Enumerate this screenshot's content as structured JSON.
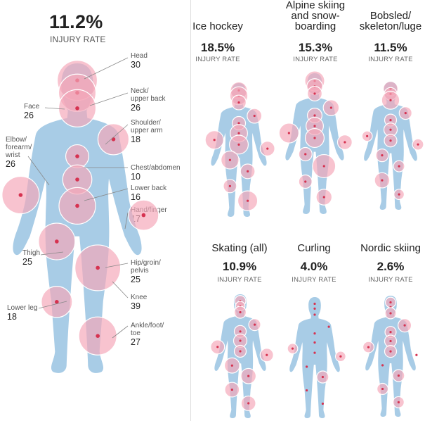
{
  "overall": {
    "rate": "11.2%",
    "caption": "INJURY RATE"
  },
  "regions": [
    {
      "id": "head",
      "label": "Head",
      "value": "30"
    },
    {
      "id": "neck",
      "label": "Neck/\nupper back",
      "value": "26"
    },
    {
      "id": "face",
      "label": "Face",
      "value": "26"
    },
    {
      "id": "shoulder",
      "label": "Shoulder/\nupper arm",
      "value": "18"
    },
    {
      "id": "elbow",
      "label": "Elbow/\nforearm/\nwrist",
      "value": "26"
    },
    {
      "id": "chest",
      "label": "Chest/abdomen",
      "value": "10"
    },
    {
      "id": "lowback",
      "label": "Lower back",
      "value": "16"
    },
    {
      "id": "hand",
      "label": "Hand/finger",
      "value": "17"
    },
    {
      "id": "thigh",
      "label": "Thigh",
      "value": "25"
    },
    {
      "id": "hip",
      "label": "Hip/groin/\npelvis",
      "value": "25"
    },
    {
      "id": "knee",
      "label": "Knee",
      "value": "39"
    },
    {
      "id": "lowerleg",
      "label": "Lower leg",
      "value": "18"
    },
    {
      "id": "ankle",
      "label": "Ankle/foot/\ntoe",
      "value": "27"
    }
  ],
  "sports": [
    {
      "id": "ice-hockey",
      "name": "Ice hockey",
      "rate": "18.5%",
      "caption": "INJURY RATE",
      "injuries": {
        "head": 16,
        "face": 18,
        "neck": 12,
        "shoulder": 12,
        "elbow": 19,
        "chest": 10,
        "lowback": 17,
        "hand": 12,
        "hip": 20,
        "thigh": 18,
        "knee": 12,
        "lowerleg": 10,
        "ankle": 22
      }
    },
    {
      "id": "alpine",
      "name": "Alpine skiing\nand snow-\nboarding",
      "rate": "15.3%",
      "caption": "INJURY RATE",
      "injuries": {
        "head": 22,
        "face": 14,
        "neck": 12,
        "shoulder": 14,
        "elbow": 22,
        "chest": 12,
        "lowback": 17,
        "hand": 12,
        "hip": 20,
        "thigh": 10,
        "knee": 30,
        "lowerleg": 10,
        "ankle": 14
      }
    },
    {
      "id": "bobsled",
      "name": "Bobsled/\nskeleton/luge",
      "rate": "11.5%",
      "caption": "INJURY RATE",
      "injuries": {
        "head": 12,
        "face": 9,
        "neck": 18,
        "shoulder": 9,
        "elbow": 6,
        "chest": 8,
        "lowback": 10,
        "hand": 7,
        "hip": 9,
        "thigh": 9,
        "knee": 7,
        "lowerleg": 13,
        "ankle": 6
      }
    },
    {
      "id": "skating",
      "name": "Skating (all)",
      "rate": "10.9%",
      "caption": "INJURY RATE",
      "injuries": {
        "head": 7,
        "face": 5,
        "neck": 8,
        "shoulder": 8,
        "elbow": 11,
        "chest": 8,
        "lowback": 10,
        "hand": 10,
        "hip": 8,
        "thigh": 13,
        "knee": 13,
        "lowerleg": 12,
        "ankle": 12
      }
    },
    {
      "id": "curling",
      "name": "Curling",
      "rate": "4.0%",
      "caption": "INJURY RATE",
      "injuries": {
        "head": 0,
        "face": 0,
        "neck": 0,
        "shoulder": 0,
        "elbow": 6,
        "chest": 0,
        "lowback": 0,
        "hand": 6,
        "hip": 0,
        "thigh": 0,
        "knee": 8,
        "lowerleg": 0,
        "ankle": 0
      }
    },
    {
      "id": "nordic",
      "name": "Nordic skiing",
      "rate": "2.6%",
      "caption": "INJURY RATE",
      "injuries": {
        "head": 6,
        "face": 0,
        "neck": 7,
        "shoulder": 10,
        "elbow": 7,
        "chest": 7,
        "lowback": 8,
        "hand": 0,
        "hip": 8,
        "thigh": 0,
        "knee": 8,
        "lowerleg": 7,
        "ankle": 7
      }
    }
  ],
  "colors": {
    "body": "#a8cce6",
    "bubble_fill": "#f4a6b8",
    "bubble_stroke": "#ffffff",
    "dot": "#d63250",
    "text": "#222222"
  }
}
